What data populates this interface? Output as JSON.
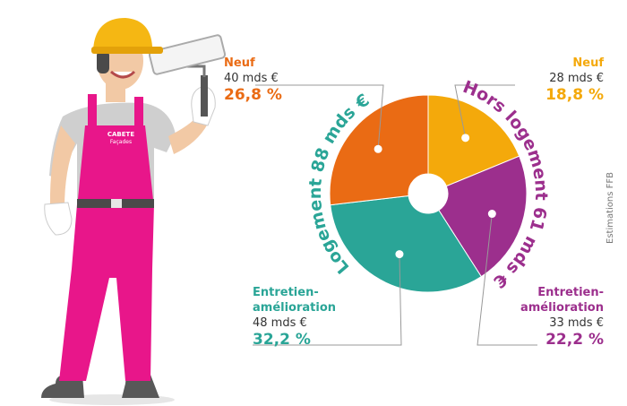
{
  "colors": {
    "neuf_logement": "#ea6b14",
    "neuf_hors_logement": "#f4a90b",
    "entretien_hors_logement": "#9c2f8d",
    "entretien_logement": "#2aa597",
    "leader_line": "#999999"
  },
  "badge": {
    "line1": "CABETE",
    "line2": "Façades"
  },
  "source_note": "Estimations FFB",
  "chart_data": {
    "type": "pie",
    "donut": true,
    "unit": "mds €",
    "groups": [
      {
        "label": "Logement 88 mds €",
        "value": 88
      },
      {
        "label": "Hors logement 61 mds €",
        "value": 61
      }
    ],
    "slices": [
      {
        "category": "Neuf",
        "group": "Hors logement",
        "amount_label": "28 mds €",
        "value": 28,
        "percent_label": "18,8 %",
        "percent": 18.8,
        "color": "#f4a90b"
      },
      {
        "category": "Entretien-amélioration",
        "group": "Hors logement",
        "amount_label": "33 mds €",
        "value": 33,
        "percent_label": "22,2 %",
        "percent": 22.2,
        "color": "#9c2f8d"
      },
      {
        "category": "Entretien-amélioration",
        "group": "Logement",
        "amount_label": "48 mds €",
        "value": 48,
        "percent_label": "32,2 %",
        "percent": 32.2,
        "color": "#2aa597"
      },
      {
        "category": "Neuf",
        "group": "Logement",
        "amount_label": "40 mds €",
        "value": 40,
        "percent_label": "26,8 %",
        "percent": 26.8,
        "color": "#ea6b14"
      }
    ],
    "labels": {
      "top_left": {
        "cat1": "Neuf",
        "cat2": "",
        "amount": "40 mds €",
        "pct": "26,8 %",
        "color": "#ea6b14"
      },
      "top_right": {
        "cat1": "Neuf",
        "cat2": "",
        "amount": "28 mds €",
        "pct": "18,8 %",
        "color": "#f4a90b"
      },
      "bottom_left": {
        "cat1": "Entretien-",
        "cat2": "amélioration",
        "amount": "48 mds €",
        "pct": "32,2 %",
        "color": "#2aa597"
      },
      "bottom_right": {
        "cat1": "Entretien-",
        "cat2": "amélioration",
        "amount": "33 mds €",
        "pct": "22,2 %",
        "color": "#9c2f8d"
      }
    }
  }
}
